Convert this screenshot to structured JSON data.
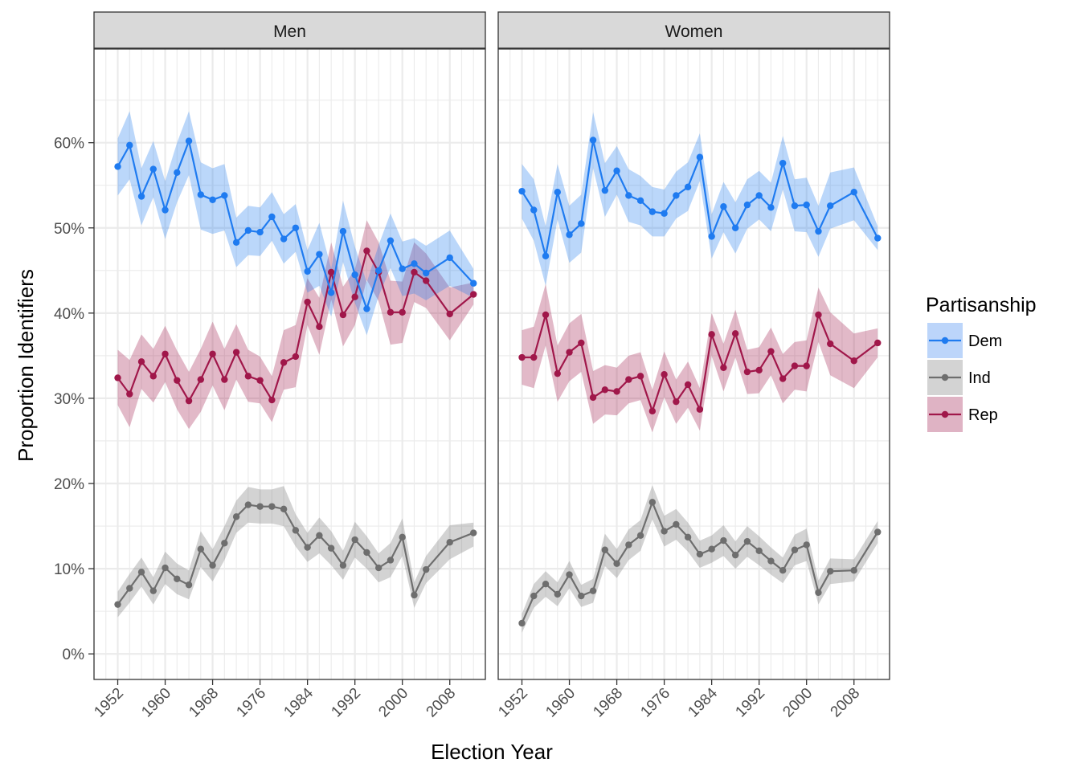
{
  "chart_data": {
    "type": "line",
    "xlabel": "Election Year",
    "ylabel": "Proportion Identifiers",
    "xlim": [
      1948,
      2014
    ],
    "ylim": [
      -0.03,
      0.71
    ],
    "x_ticks": [
      1952,
      1960,
      1968,
      1976,
      1984,
      1992,
      2000,
      2008
    ],
    "y_ticks": [
      0,
      0.1,
      0.2,
      0.3,
      0.4,
      0.5,
      0.6
    ],
    "y_tick_labels": [
      "0%",
      "10%",
      "20%",
      "30%",
      "40%",
      "50%",
      "60%"
    ],
    "grid": true,
    "legend": {
      "title": "Partisanship",
      "position": "right",
      "entries": [
        {
          "name": "Dem",
          "color": "#1f7bf0",
          "band": "#bcd5fa"
        },
        {
          "name": "Ind",
          "color": "#6e6e6e",
          "band": "#d3d3d3"
        },
        {
          "name": "Rep",
          "color": "#a0174a",
          "band": "#dfb3c4"
        }
      ]
    },
    "panels": [
      {
        "title": "Men",
        "x": [
          1952,
          1954,
          1956,
          1958,
          1960,
          1962,
          1964,
          1966,
          1968,
          1970,
          1972,
          1974,
          1976,
          1978,
          1980,
          1982,
          1984,
          1986,
          1988,
          1990,
          1992,
          1994,
          1996,
          1998,
          2000,
          2002,
          2004,
          2008,
          2012
        ],
        "series": [
          {
            "name": "Dem",
            "values": [
              0.572,
              0.597,
              0.537,
              0.569,
              0.521,
              0.565,
              0.602,
              0.539,
              0.533,
              0.538,
              0.483,
              0.497,
              0.495,
              0.513,
              0.487,
              0.5,
              0.449,
              0.469,
              0.424,
              0.496,
              0.445,
              0.405,
              0.45,
              0.485,
              0.452,
              0.458,
              0.447,
              0.465,
              0.435
            ],
            "lower": [
              0.538,
              0.557,
              0.503,
              0.536,
              0.487,
              0.53,
              0.562,
              0.498,
              0.493,
              0.497,
              0.454,
              0.468,
              0.467,
              0.485,
              0.458,
              0.472,
              0.424,
              0.432,
              0.396,
              0.46,
              0.412,
              0.374,
              0.42,
              0.453,
              0.42,
              0.423,
              0.415,
              0.432,
              0.418
            ],
            "upper": [
              0.605,
              0.637,
              0.57,
              0.602,
              0.555,
              0.6,
              0.637,
              0.577,
              0.57,
              0.575,
              0.512,
              0.526,
              0.524,
              0.542,
              0.516,
              0.528,
              0.474,
              0.506,
              0.452,
              0.532,
              0.478,
              0.436,
              0.48,
              0.517,
              0.484,
              0.488,
              0.479,
              0.497,
              0.452
            ]
          },
          {
            "name": "Ind",
            "values": [
              0.058,
              0.077,
              0.096,
              0.074,
              0.101,
              0.088,
              0.081,
              0.123,
              0.104,
              0.13,
              0.161,
              0.175,
              0.173,
              0.173,
              0.17,
              0.145,
              0.125,
              0.139,
              0.124,
              0.104,
              0.134,
              0.119,
              0.101,
              0.11,
              0.137,
              0.069,
              0.099,
              0.131,
              0.142
            ],
            "lower": [
              0.043,
              0.06,
              0.079,
              0.058,
              0.082,
              0.07,
              0.064,
              0.102,
              0.085,
              0.11,
              0.142,
              0.154,
              0.153,
              0.153,
              0.15,
              0.126,
              0.108,
              0.118,
              0.104,
              0.087,
              0.113,
              0.1,
              0.084,
              0.09,
              0.115,
              0.054,
              0.083,
              0.111,
              0.126
            ],
            "upper": [
              0.073,
              0.094,
              0.113,
              0.09,
              0.12,
              0.106,
              0.098,
              0.144,
              0.123,
              0.15,
              0.18,
              0.196,
              0.193,
              0.193,
              0.197,
              0.164,
              0.142,
              0.16,
              0.144,
              0.121,
              0.155,
              0.138,
              0.118,
              0.13,
              0.159,
              0.084,
              0.115,
              0.151,
              0.154
            ]
          },
          {
            "name": "Rep",
            "values": [
              0.324,
              0.305,
              0.343,
              0.326,
              0.352,
              0.321,
              0.297,
              0.322,
              0.352,
              0.322,
              0.354,
              0.326,
              0.321,
              0.298,
              0.342,
              0.349,
              0.413,
              0.384,
              0.448,
              0.398,
              0.419,
              0.473,
              0.448,
              0.401,
              0.401,
              0.448,
              0.438,
              0.399,
              0.422
            ],
            "lower": [
              0.292,
              0.266,
              0.311,
              0.295,
              0.319,
              0.287,
              0.264,
              0.284,
              0.315,
              0.286,
              0.322,
              0.296,
              0.294,
              0.272,
              0.31,
              0.313,
              0.386,
              0.351,
              0.416,
              0.361,
              0.386,
              0.439,
              0.414,
              0.363,
              0.365,
              0.413,
              0.406,
              0.368,
              0.41
            ],
            "upper": [
              0.357,
              0.345,
              0.375,
              0.358,
              0.385,
              0.356,
              0.331,
              0.358,
              0.39,
              0.358,
              0.387,
              0.357,
              0.349,
              0.326,
              0.38,
              0.386,
              0.441,
              0.418,
              0.483,
              0.431,
              0.451,
              0.509,
              0.483,
              0.438,
              0.437,
              0.483,
              0.47,
              0.43,
              0.436
            ]
          }
        ]
      },
      {
        "title": "Women",
        "x": [
          1952,
          1954,
          1956,
          1958,
          1960,
          1962,
          1964,
          1966,
          1968,
          1970,
          1972,
          1974,
          1976,
          1978,
          1980,
          1982,
          1984,
          1986,
          1988,
          1990,
          1992,
          1994,
          1996,
          1998,
          2000,
          2002,
          2004,
          2008,
          2012
        ],
        "series": [
          {
            "name": "Dem",
            "values": [
              0.543,
              0.521,
              0.467,
              0.542,
              0.492,
              0.505,
              0.603,
              0.544,
              0.567,
              0.538,
              0.532,
              0.519,
              0.517,
              0.538,
              0.548,
              0.583,
              0.49,
              0.525,
              0.5,
              0.527,
              0.538,
              0.524,
              0.576,
              0.526,
              0.527,
              0.496,
              0.526,
              0.542,
              0.488
            ],
            "lower": [
              0.511,
              0.485,
              0.432,
              0.51,
              0.459,
              0.471,
              0.57,
              0.513,
              0.539,
              0.507,
              0.503,
              0.49,
              0.49,
              0.511,
              0.52,
              0.555,
              0.464,
              0.495,
              0.47,
              0.499,
              0.51,
              0.496,
              0.545,
              0.496,
              0.495,
              0.466,
              0.499,
              0.509,
              0.474
            ],
            "upper": [
              0.575,
              0.557,
              0.502,
              0.575,
              0.526,
              0.539,
              0.636,
              0.576,
              0.596,
              0.569,
              0.561,
              0.548,
              0.545,
              0.566,
              0.577,
              0.611,
              0.516,
              0.554,
              0.53,
              0.557,
              0.567,
              0.553,
              0.608,
              0.557,
              0.559,
              0.526,
              0.565,
              0.571,
              0.502
            ]
          },
          {
            "name": "Ind",
            "values": [
              0.036,
              0.068,
              0.082,
              0.07,
              0.093,
              0.068,
              0.074,
              0.122,
              0.106,
              0.128,
              0.139,
              0.178,
              0.144,
              0.152,
              0.137,
              0.117,
              0.123,
              0.133,
              0.116,
              0.132,
              0.121,
              0.109,
              0.098,
              0.122,
              0.128,
              0.072,
              0.097,
              0.098,
              0.143
            ],
            "lower": [
              0.025,
              0.054,
              0.067,
              0.056,
              0.077,
              0.055,
              0.06,
              0.103,
              0.089,
              0.11,
              0.121,
              0.158,
              0.126,
              0.134,
              0.12,
              0.101,
              0.107,
              0.115,
              0.1,
              0.114,
              0.104,
              0.093,
              0.083,
              0.104,
              0.109,
              0.058,
              0.082,
              0.085,
              0.13
            ],
            "upper": [
              0.047,
              0.082,
              0.097,
              0.084,
              0.109,
              0.081,
              0.088,
              0.141,
              0.123,
              0.146,
              0.157,
              0.198,
              0.162,
              0.17,
              0.154,
              0.133,
              0.139,
              0.151,
              0.132,
              0.15,
              0.138,
              0.125,
              0.113,
              0.14,
              0.147,
              0.086,
              0.112,
              0.111,
              0.156
            ]
          },
          {
            "name": "Rep",
            "values": [
              0.348,
              0.348,
              0.398,
              0.329,
              0.354,
              0.365,
              0.301,
              0.31,
              0.308,
              0.322,
              0.326,
              0.285,
              0.328,
              0.296,
              0.316,
              0.287,
              0.375,
              0.336,
              0.376,
              0.331,
              0.333,
              0.355,
              0.323,
              0.338,
              0.338,
              0.398,
              0.364,
              0.344,
              0.365
            ],
            "lower": [
              0.316,
              0.312,
              0.362,
              0.296,
              0.32,
              0.331,
              0.27,
              0.281,
              0.28,
              0.294,
              0.298,
              0.26,
              0.301,
              0.27,
              0.289,
              0.262,
              0.35,
              0.308,
              0.348,
              0.305,
              0.306,
              0.327,
              0.294,
              0.31,
              0.308,
              0.366,
              0.327,
              0.312,
              0.348
            ],
            "upper": [
              0.38,
              0.384,
              0.434,
              0.362,
              0.388,
              0.399,
              0.332,
              0.339,
              0.336,
              0.35,
              0.354,
              0.31,
              0.355,
              0.322,
              0.343,
              0.312,
              0.4,
              0.364,
              0.404,
              0.357,
              0.36,
              0.383,
              0.352,
              0.366,
              0.368,
              0.43,
              0.401,
              0.376,
              0.382
            ]
          }
        ]
      }
    ]
  }
}
